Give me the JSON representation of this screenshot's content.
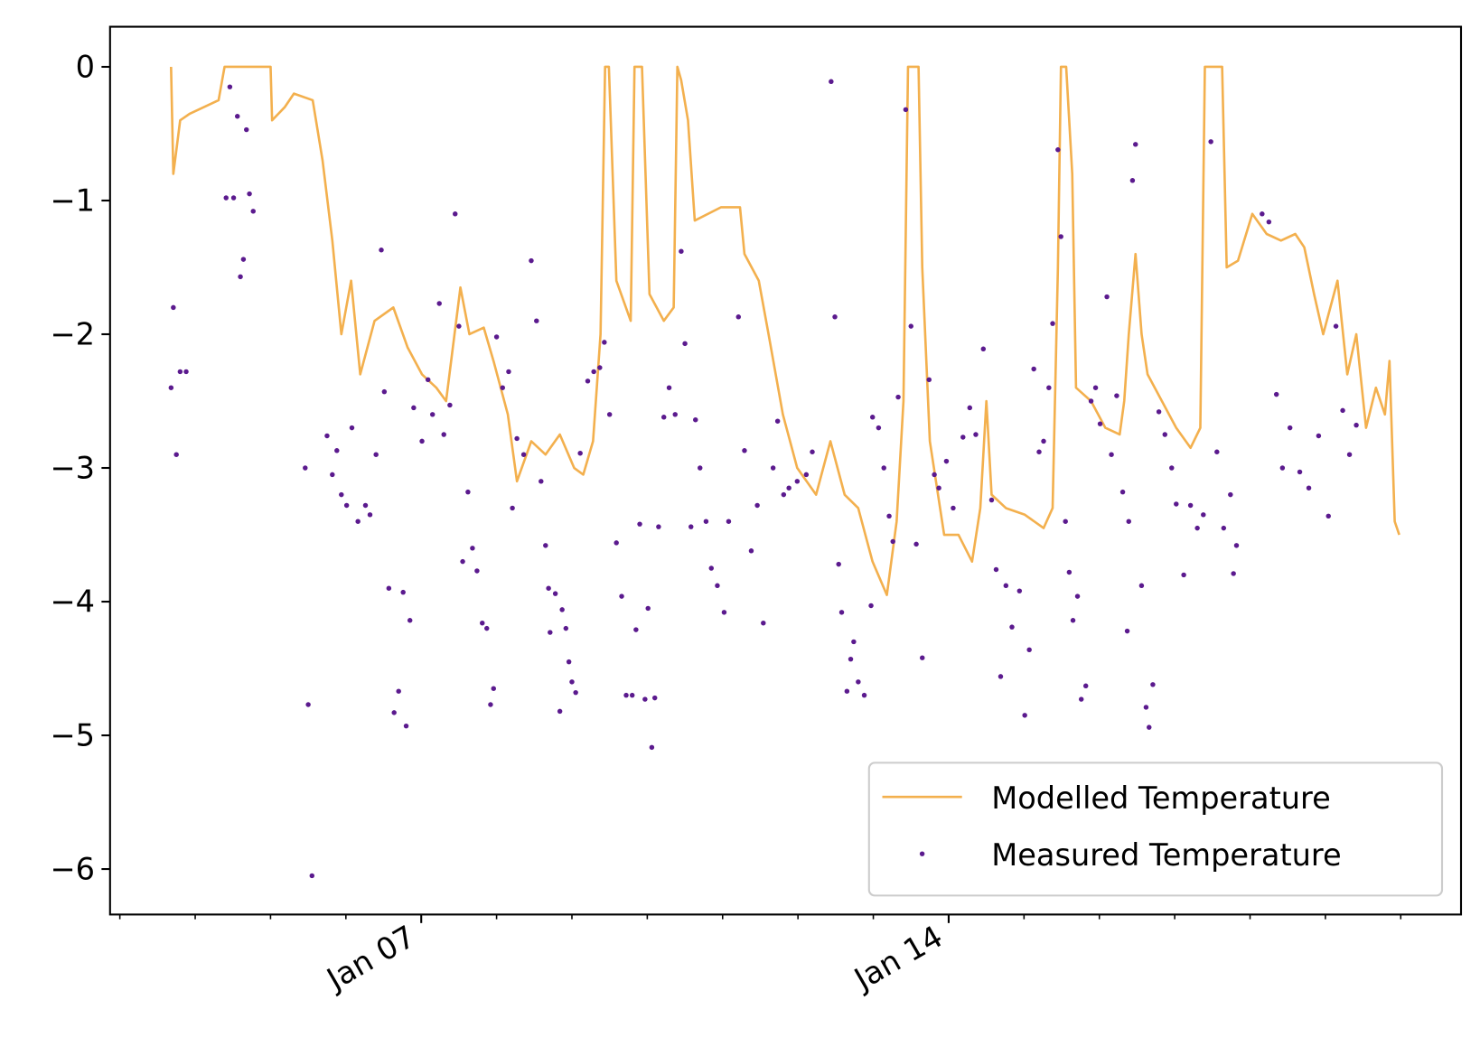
{
  "chart_data": {
    "type": "line",
    "xlim": [
      2.87,
      20.8
    ],
    "ylim": [
      -6.34,
      0.3
    ],
    "xticks": [
      {
        "value": 7,
        "label": "Jan 07"
      },
      {
        "value": 14,
        "label": "Jan 14"
      }
    ],
    "xminorticks": [
      3,
      4,
      5,
      6,
      8,
      9,
      10,
      11,
      12,
      13,
      15,
      16,
      17,
      18,
      19,
      20
    ],
    "yticks": [
      {
        "value": -6,
        "label": "−6"
      },
      {
        "value": -5,
        "label": "−5"
      },
      {
        "value": -4,
        "label": "−4"
      },
      {
        "value": -3,
        "label": "−3"
      },
      {
        "value": -2,
        "label": "−2"
      },
      {
        "value": -1,
        "label": "−1"
      },
      0
    ],
    "legend": "lower right",
    "series": [
      {
        "name": "Modelled Temperature",
        "type": "line",
        "color": "#f3b04e",
        "x": [
          3.68,
          3.71,
          3.8,
          3.93,
          4.31,
          4.39,
          5.0,
          5.02,
          5.19,
          5.31,
          5.56,
          5.69,
          5.82,
          5.94,
          6.07,
          6.19,
          6.38,
          6.63,
          6.82,
          7.01,
          7.2,
          7.33,
          7.52,
          7.64,
          7.83,
          7.96,
          8.15,
          8.27,
          8.46,
          8.65,
          8.84,
          9.03,
          9.15,
          9.28,
          9.38,
          9.44,
          9.49,
          9.59,
          9.78,
          9.83,
          9.93,
          10.03,
          10.22,
          10.35,
          10.4,
          10.45,
          10.54,
          10.63,
          10.98,
          11.23,
          11.29,
          11.48,
          11.61,
          11.8,
          11.99,
          12.24,
          12.43,
          12.62,
          12.8,
          12.99,
          13.18,
          13.31,
          13.4,
          13.46,
          13.6,
          13.65,
          13.75,
          13.94,
          14.13,
          14.31,
          14.42,
          14.5,
          14.57,
          14.76,
          15.01,
          15.26,
          15.38,
          15.45,
          15.49,
          15.56,
          15.64,
          15.69,
          15.89,
          16.08,
          16.27,
          16.33,
          16.39,
          16.48,
          16.56,
          16.64,
          16.83,
          17.02,
          17.21,
          17.34,
          17.4,
          17.63,
          17.69,
          17.84,
          18.03,
          18.22,
          18.41,
          18.6,
          18.72,
          18.85,
          18.97,
          19.16,
          19.29,
          19.41,
          19.54,
          19.67,
          19.79,
          19.85,
          19.92,
          19.98
        ],
        "values": [
          0,
          -0.8,
          -0.4,
          -0.35,
          -0.25,
          0,
          0,
          -0.4,
          -0.3,
          -0.2,
          -0.25,
          -0.7,
          -1.3,
          -2.0,
          -1.6,
          -2.3,
          -1.9,
          -1.8,
          -2.1,
          -2.3,
          -2.4,
          -2.5,
          -1.65,
          -2.0,
          -1.95,
          -2.2,
          -2.6,
          -3.1,
          -2.8,
          -2.9,
          -2.75,
          -3.0,
          -3.05,
          -2.8,
          -2.0,
          0,
          0,
          -1.6,
          -1.9,
          0,
          0,
          -1.7,
          -1.9,
          -1.8,
          0,
          -0.1,
          -0.4,
          -1.15,
          -1.05,
          -1.05,
          -1.4,
          -1.6,
          -2.0,
          -2.6,
          -3.0,
          -3.2,
          -2.8,
          -3.2,
          -3.3,
          -3.7,
          -3.95,
          -3.4,
          -2.5,
          0,
          0,
          -1.5,
          -2.8,
          -3.5,
          -3.5,
          -3.7,
          -3.3,
          -2.5,
          -3.2,
          -3.3,
          -3.35,
          -3.45,
          -3.3,
          -1.5,
          0,
          0,
          -0.8,
          -2.4,
          -2.5,
          -2.7,
          -2.75,
          -2.5,
          -2.0,
          -1.4,
          -2.0,
          -2.3,
          -2.5,
          -2.7,
          -2.85,
          -2.7,
          0,
          0,
          -1.5,
          -1.45,
          -1.1,
          -1.25,
          -1.3,
          -1.25,
          -1.35,
          -1.7,
          -2.0,
          -1.6,
          -2.3,
          -2.0,
          -2.7,
          -2.4,
          -2.6,
          -2.2,
          -3.4,
          -3.5
        ]
      },
      {
        "name": "Measured Temperature",
        "type": "scatter",
        "color": "#5b1a8e",
        "x": [
          3.68,
          3.71,
          3.75,
          3.8,
          3.88,
          4.46,
          4.41,
          4.51,
          4.56,
          4.6,
          4.64,
          4.68,
          4.72,
          4.77,
          5.46,
          5.5,
          5.55,
          5.75,
          5.82,
          5.88,
          5.94,
          6.01,
          6.08,
          6.16,
          6.26,
          6.32,
          6.4,
          6.47,
          6.51,
          6.57,
          6.64,
          6.7,
          6.76,
          6.8,
          6.85,
          6.9,
          7.01,
          7.09,
          7.15,
          7.24,
          7.3,
          7.38,
          7.45,
          7.5,
          7.55,
          7.62,
          7.68,
          7.74,
          7.81,
          7.87,
          7.92,
          7.96,
          8.0,
          8.08,
          8.16,
          8.21,
          8.27,
          8.36,
          8.46,
          8.53,
          8.59,
          8.65,
          8.69,
          8.71,
          8.78,
          8.84,
          8.87,
          8.92,
          8.96,
          9.0,
          9.05,
          9.11,
          9.21,
          9.29,
          9.37,
          9.43,
          9.5,
          9.59,
          9.66,
          9.72,
          9.8,
          9.85,
          9.9,
          9.97,
          10.01,
          10.06,
          10.1,
          10.15,
          10.22,
          10.29,
          10.37,
          10.45,
          10.5,
          10.58,
          10.64,
          10.7,
          10.78,
          10.85,
          10.93,
          11.02,
          11.08,
          11.21,
          11.29,
          11.38,
          11.46,
          11.54,
          11.67,
          11.73,
          11.81,
          11.88,
          11.99,
          12.11,
          12.19,
          12.44,
          12.49,
          12.54,
          12.58,
          12.65,
          12.7,
          12.74,
          12.8,
          12.88,
          12.97,
          12.99,
          13.07,
          13.14,
          13.21,
          13.26,
          13.33,
          13.43,
          13.5,
          13.57,
          13.65,
          13.74,
          13.81,
          13.87,
          13.97,
          14.06,
          14.19,
          14.28,
          14.36,
          14.46,
          14.57,
          14.63,
          14.69,
          14.76,
          14.84,
          14.94,
          15.01,
          15.07,
          15.13,
          15.2,
          15.26,
          15.33,
          15.38,
          15.45,
          15.49,
          15.55,
          15.6,
          15.65,
          15.71,
          15.76,
          15.82,
          15.89,
          15.95,
          16.01,
          16.1,
          16.16,
          16.23,
          16.31,
          16.37,
          16.39,
          16.44,
          16.48,
          16.56,
          16.62,
          16.66,
          16.71,
          16.79,
          16.87,
          16.96,
          17.02,
          17.12,
          17.21,
          17.3,
          17.38,
          17.48,
          17.56,
          17.65,
          17.74,
          17.78,
          17.82,
          18.16,
          18.25,
          18.35,
          18.43,
          18.53,
          18.66,
          18.78,
          18.91,
          19.04,
          19.14,
          19.23,
          19.32,
          19.41
        ],
        "values": [
          -2.4,
          -1.8,
          -2.9,
          -2.28,
          -2.28,
          -0.15,
          -0.98,
          -0.98,
          -0.37,
          -1.57,
          -1.44,
          -0.47,
          -0.95,
          -1.08,
          -3.0,
          -4.77,
          -6.05,
          -2.76,
          -3.05,
          -2.87,
          -3.2,
          -3.28,
          -2.7,
          -3.4,
          -3.28,
          -3.35,
          -2.9,
          -1.37,
          -2.43,
          -3.9,
          -4.83,
          -4.67,
          -3.93,
          -4.93,
          -4.14,
          -2.55,
          -2.8,
          -2.34,
          -2.6,
          -1.77,
          -2.75,
          -2.53,
          -1.1,
          -1.94,
          -3.7,
          -3.18,
          -3.6,
          -3.77,
          -4.16,
          -4.2,
          -4.77,
          -4.65,
          -2.02,
          -2.4,
          -2.28,
          -3.3,
          -2.78,
          -2.9,
          -1.45,
          -1.9,
          -3.1,
          -3.58,
          -3.9,
          -4.23,
          -3.94,
          -4.82,
          -4.06,
          -4.2,
          -4.45,
          -4.6,
          -4.68,
          -2.89,
          -2.35,
          -2.28,
          -2.25,
          -2.06,
          -2.6,
          -3.56,
          -3.96,
          -4.7,
          -4.7,
          -4.21,
          -3.42,
          -4.73,
          -4.05,
          -5.09,
          -4.72,
          -3.44,
          -2.62,
          -2.4,
          -2.6,
          -1.38,
          -2.07,
          -3.44,
          -2.64,
          -3.0,
          -3.4,
          -3.75,
          -3.88,
          -4.08,
          -3.4,
          -1.87,
          -2.87,
          -3.62,
          -3.28,
          -4.16,
          -3.0,
          -2.65,
          -3.2,
          -3.15,
          -3.1,
          -3.05,
          -2.88,
          -0.11,
          -1.87,
          -3.72,
          -4.08,
          -4.67,
          -4.43,
          -4.3,
          -4.6,
          -4.7,
          -4.03,
          -2.62,
          -2.7,
          -3.0,
          -3.36,
          -3.55,
          -2.47,
          -0.32,
          -1.94,
          -3.57,
          -4.42,
          -2.34,
          -3.05,
          -3.15,
          -2.95,
          -3.3,
          -2.77,
          -2.55,
          -2.75,
          -2.11,
          -3.24,
          -3.76,
          -4.56,
          -3.88,
          -4.19,
          -3.92,
          -4.85,
          -4.36,
          -2.26,
          -2.88,
          -2.8,
          -2.4,
          -1.92,
          -0.62,
          -1.27,
          -3.4,
          -3.78,
          -4.14,
          -3.96,
          -4.73,
          -4.63,
          -2.5,
          -2.4,
          -2.67,
          -1.72,
          -2.9,
          -2.46,
          -3.18,
          -4.22,
          -3.4,
          -0.85,
          -0.58,
          -3.88,
          -4.79,
          -4.94,
          -4.62,
          -2.58,
          -2.75,
          -3.0,
          -3.27,
          -3.8,
          -3.28,
          -3.45,
          -3.35,
          -0.56,
          -2.88,
          -3.45,
          -3.2,
          -3.79,
          -3.58,
          -1.1,
          -1.16,
          -2.45,
          -3.0,
          -2.7,
          -3.03,
          -3.15,
          -2.76,
          -3.36,
          -1.94,
          -2.57,
          -2.9,
          -2.68
        ]
      }
    ]
  }
}
